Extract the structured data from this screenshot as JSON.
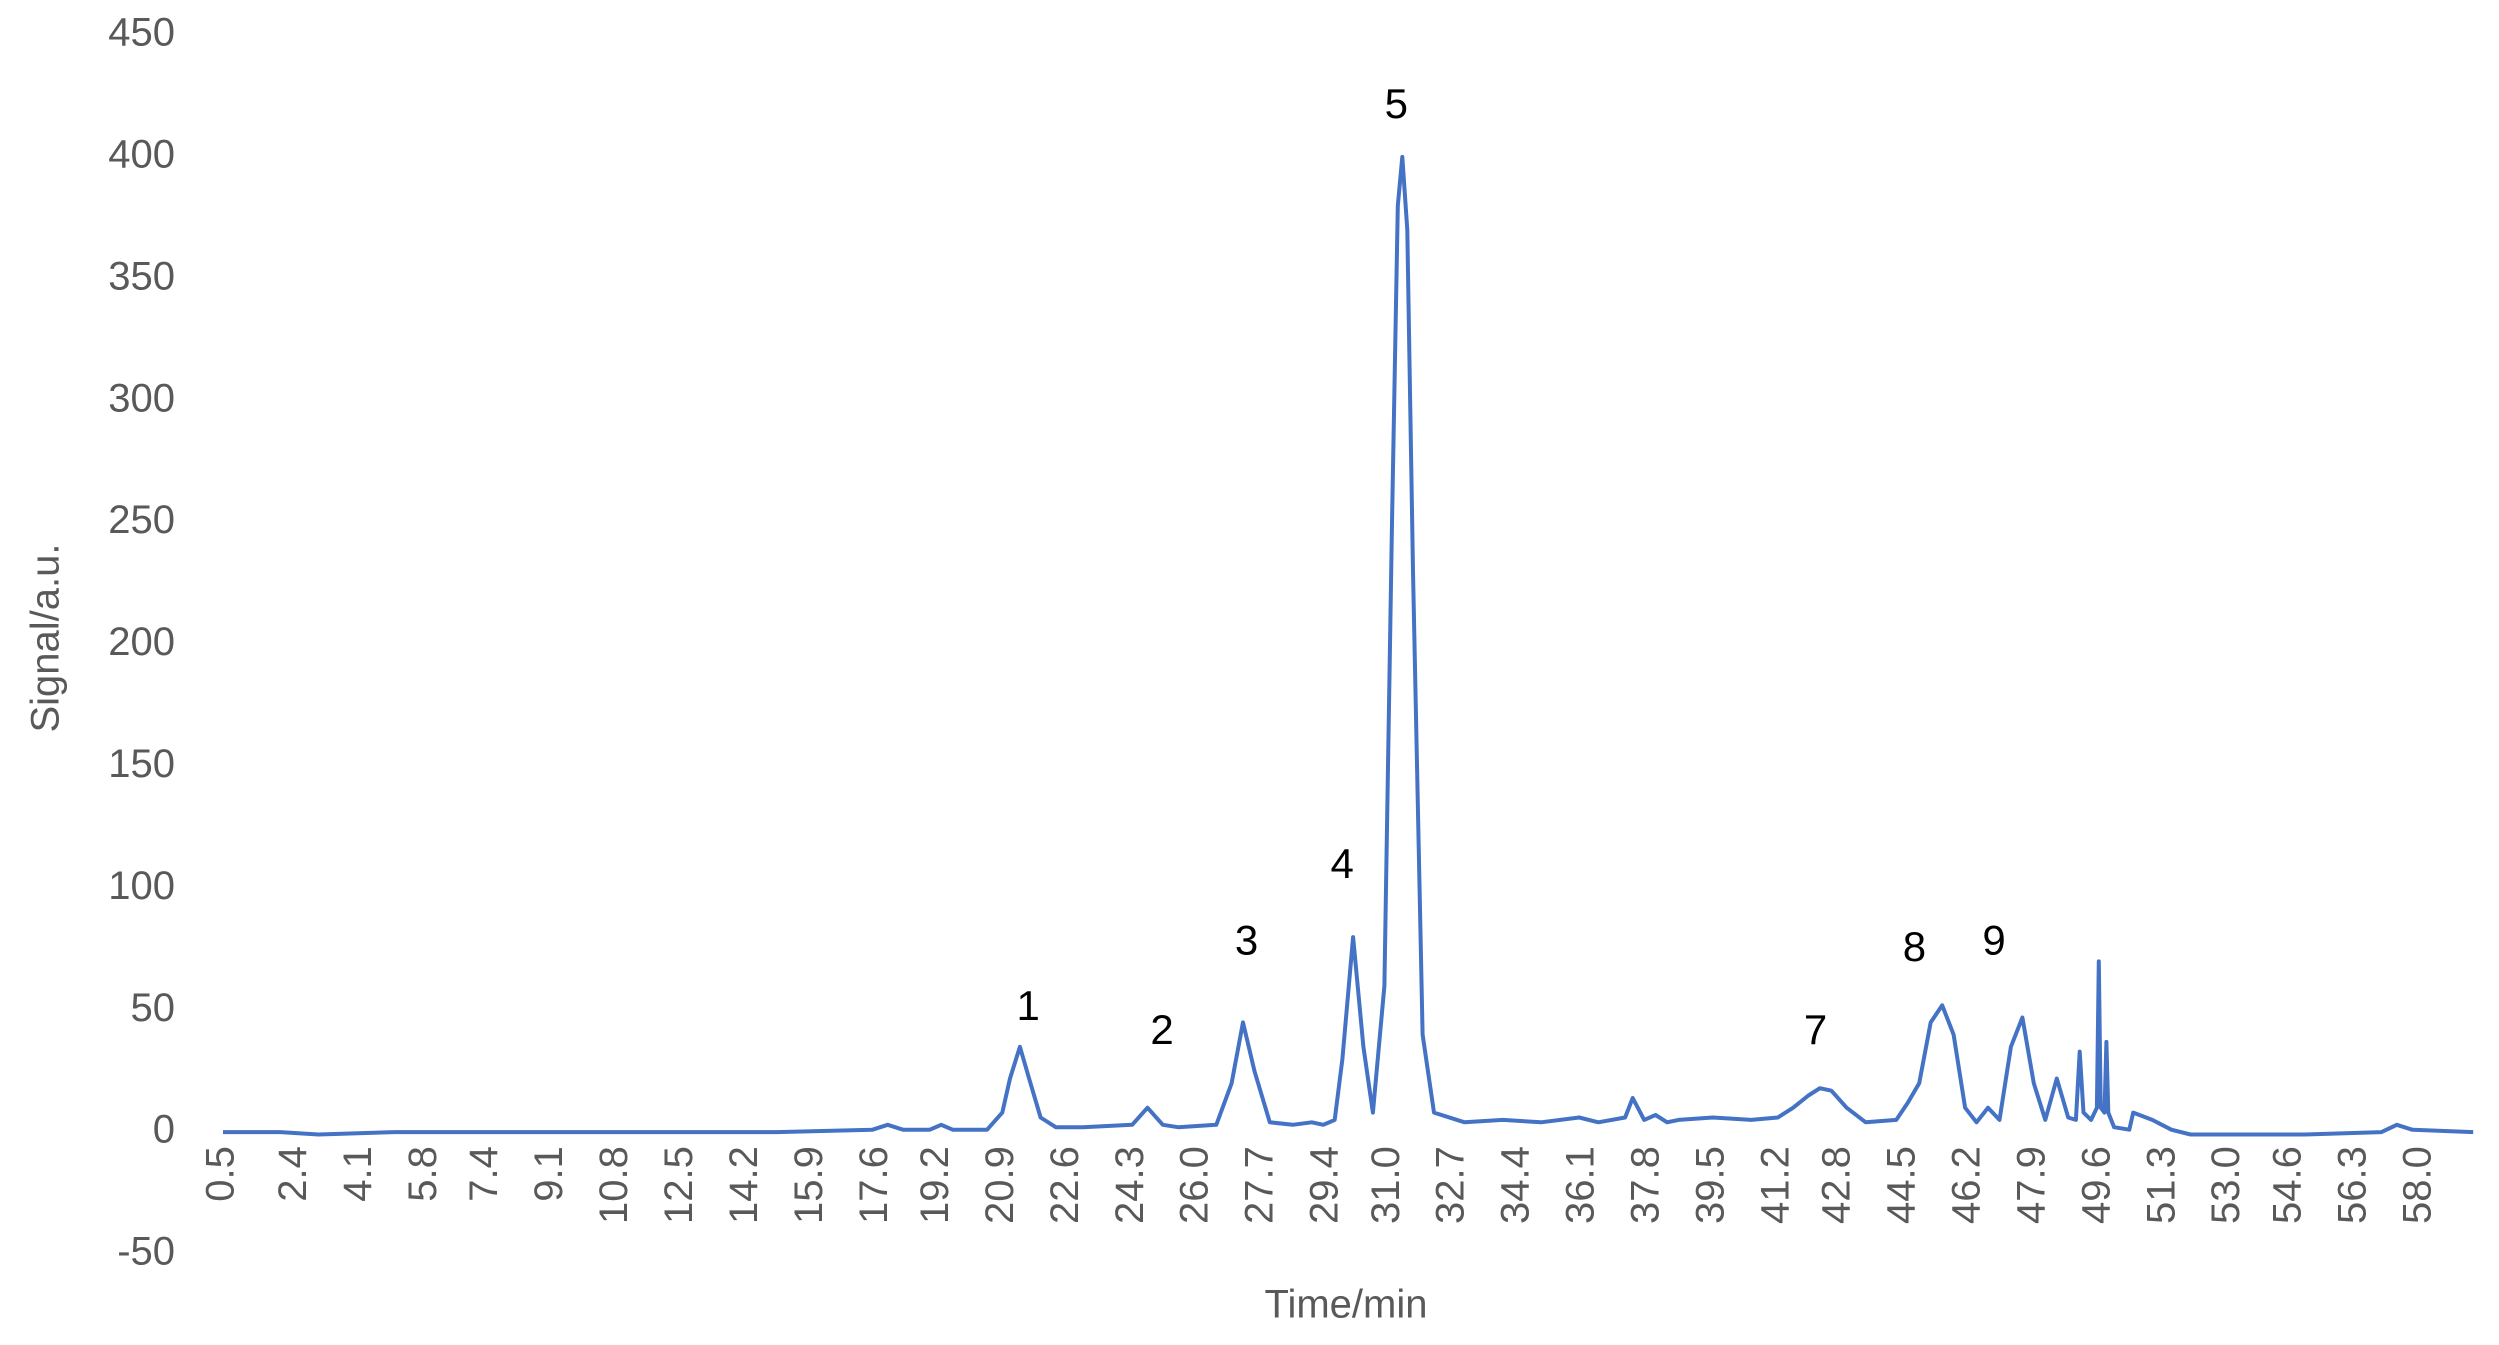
{
  "chart_data": {
    "type": "line",
    "xlabel": "Time/min",
    "ylabel": "Signal/a.u.",
    "annotations": [
      "1",
      "2",
      "3",
      "4",
      "5",
      "7",
      "8",
      "9"
    ],
    "x": [
      0.5,
      2,
      3,
      5,
      10,
      15,
      17.5,
      17.9,
      18.3,
      19,
      19.3,
      19.6,
      20.5,
      20.9,
      21.1,
      21.36,
      21.6,
      21.9,
      22.3,
      23,
      24.3,
      24.7,
      25.1,
      25.5,
      26.5,
      26.9,
      27.2,
      27.5,
      27.9,
      28.5,
      29,
      29.3,
      29.6,
      29.8,
      30.08,
      30.35,
      30.6,
      30.9,
      31.1,
      31.25,
      31.37,
      31.5,
      31.65,
      31.9,
      32.2,
      33,
      34,
      35,
      36,
      36.5,
      37.2,
      37.4,
      37.7,
      38,
      38.3,
      38.6,
      39.5,
      40.5,
      41.2,
      41.6,
      42,
      42.3,
      42.6,
      43,
      43.5,
      44.3,
      44.6,
      44.9,
      45.2,
      45.5,
      45.8,
      46.1,
      46.4,
      46.7,
      47,
      47.3,
      47.6,
      47.9,
      48.2,
      48.5,
      48.8,
      49,
      49.1,
      49.2,
      49.4,
      49.55,
      49.6,
      49.65,
      49.75,
      49.8,
      49.85,
      50,
      50.4,
      50.5,
      51,
      51.5,
      52,
      55,
      57,
      57.4,
      57.8,
      59.4
    ],
    "series": [
      {
        "name": "Signal",
        "color": "#4472c4",
        "values": [
          0,
          0,
          -1,
          0,
          0,
          0,
          1,
          3,
          1,
          1,
          3,
          1,
          1,
          8,
          22,
          35,
          22,
          6,
          2,
          2,
          3,
          10,
          3,
          2,
          3,
          20,
          45,
          25,
          4,
          3,
          4,
          3,
          5,
          30,
          80,
          35,
          8,
          60,
          250,
          380,
          400,
          370,
          230,
          40,
          8,
          4,
          5,
          4,
          6,
          4,
          6,
          14,
          5,
          7,
          4,
          5,
          6,
          5,
          6,
          10,
          15,
          18,
          17,
          10,
          4,
          5,
          12,
          20,
          45,
          52,
          40,
          10,
          4,
          10,
          5,
          35,
          47,
          20,
          5,
          22,
          6,
          5,
          33,
          8,
          5,
          10,
          70,
          10,
          8,
          37,
          8,
          2,
          1,
          8,
          5,
          1,
          -1,
          -1,
          0,
          3,
          1,
          0
        ]
      }
    ],
    "xlim": [
      0.5,
      59.5
    ],
    "xticks": [
      0.5,
      2.4,
      4.1,
      5.8,
      7.4,
      9.1,
      10.8,
      12.5,
      14.2,
      15.9,
      17.6,
      19.2,
      20.9,
      22.6,
      24.3,
      {
        "value": 26,
        "label": "26.0"
      },
      27.7,
      29.4,
      {
        "value": 31,
        "label": "31.0"
      },
      32.7,
      34.4,
      36.1,
      37.8,
      39.5,
      41.2,
      42.8,
      44.5,
      46.2,
      47.9,
      49.6,
      51.3,
      {
        "value": 53,
        "label": "53.0"
      },
      54.6,
      56.3,
      {
        "value": 58,
        "label": "58.0"
      }
    ],
    "ylim": [
      -50,
      450
    ],
    "yticks": [
      -50,
      0,
      50,
      100,
      150,
      200,
      250,
      300,
      350,
      400,
      450
    ]
  }
}
